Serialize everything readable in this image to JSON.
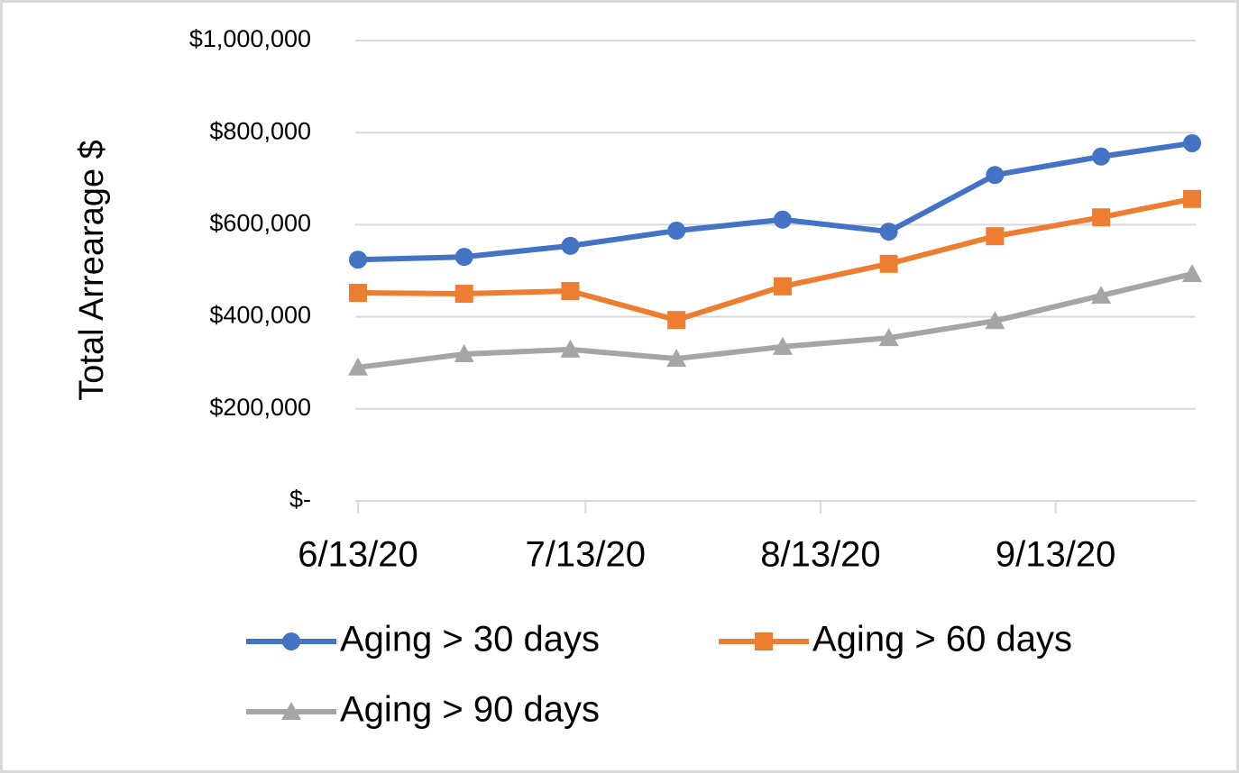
{
  "chart_data": {
    "type": "line",
    "y_label": "Total Arrearage $",
    "x": [
      "2020-06-13",
      "2020-06-27",
      "2020-07-11",
      "2020-07-25",
      "2020-08-08",
      "2020-08-22",
      "2020-09-05",
      "2020-09-19",
      "2020-10-01"
    ],
    "series": [
      {
        "name": "Aging > 30 days",
        "color": "#4472c4",
        "marker": "circle",
        "values": [
          524000,
          530000,
          554000,
          587000,
          611000,
          585000,
          708000,
          748000,
          777000
        ]
      },
      {
        "name": "Aging > 60 days",
        "color": "#ed7d31",
        "marker": "square",
        "values": [
          452000,
          450000,
          456000,
          393000,
          466000,
          515000,
          575000,
          616000,
          656000
        ]
      },
      {
        "name": "Aging > 90 days",
        "color": "#a5a5a5",
        "marker": "triangle",
        "values": [
          290000,
          319000,
          329000,
          309000,
          335000,
          354000,
          391000,
          446000,
          493000
        ]
      }
    ],
    "xlim": [
      "2020-06-13",
      "2020-10-01"
    ],
    "xticks": [
      {
        "value": "2020-06-13",
        "label": "6/13/20"
      },
      {
        "value": "2020-07-13",
        "label": "7/13/20"
      },
      {
        "value": "2020-08-13",
        "label": "8/13/20"
      },
      {
        "value": "2020-09-13",
        "label": "9/13/20"
      }
    ],
    "ylim": [
      0,
      1000000
    ],
    "yticks": [
      {
        "value": 0,
        "label": "$-"
      },
      {
        "value": 200000,
        "label": "$200,000"
      },
      {
        "value": 400000,
        "label": "$400,000"
      },
      {
        "value": 600000,
        "label": "$600,000"
      },
      {
        "value": 800000,
        "label": "$800,000"
      },
      {
        "value": 1000000,
        "label": "$1,000,000"
      }
    ],
    "grid": true,
    "legend": "bottom"
  }
}
